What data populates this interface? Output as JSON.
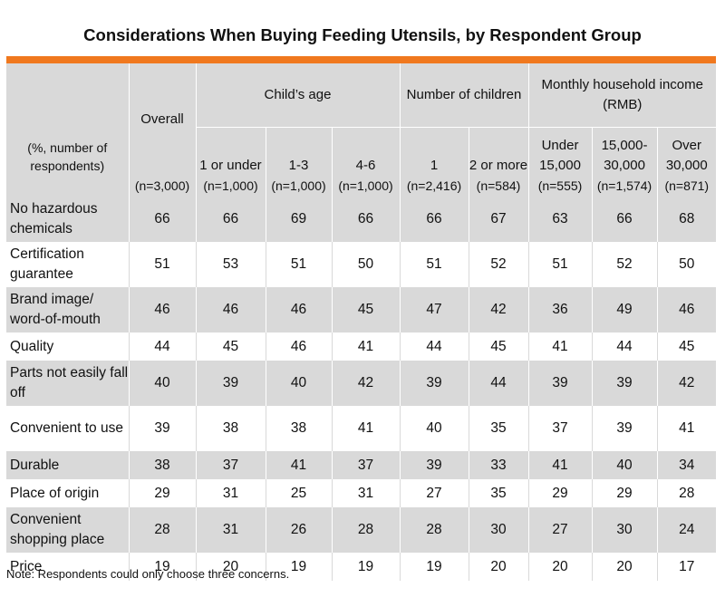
{
  "title": "Considerations When Buying Feeding Utensils, by Respondent Group",
  "note": "Note: Respondents could only choose three concerns.",
  "colors": {
    "accent_bar": "#f0781e",
    "shade": "#d9d9d9"
  },
  "header": {
    "row_label": "(%, number of respondents)",
    "overall": "Overall",
    "childs_age": "Child’s age",
    "num_children": "Number of children",
    "income": "Monthly household income (RMB)",
    "sub": [
      "1 or under",
      "1-3",
      "4-6",
      "1",
      "2 or more",
      "Under 15,000",
      "15,000-30,000",
      "Over 30,000"
    ],
    "n": [
      "(n=3,000)",
      "(n=1,000)",
      "(n=1,000)",
      "(n=1,000)",
      "(n=2,416)",
      "(n=584)",
      "(n=555)",
      "(n=1,574)",
      "(n=871)"
    ]
  },
  "chart_data": {
    "type": "table",
    "title": "Considerations When Buying Feeding Utensils, by Respondent Group",
    "columns": [
      "Overall",
      "1 or under",
      "1-3",
      "4-6",
      "1",
      "2 or more",
      "Under 15,000",
      "15,000-30,000",
      "Over 30,000"
    ],
    "rows": [
      {
        "label": "No hazardous chemicals",
        "values": [
          66,
          66,
          69,
          66,
          66,
          67,
          63,
          66,
          68
        ]
      },
      {
        "label": "Certification guarantee",
        "values": [
          51,
          53,
          51,
          50,
          51,
          52,
          51,
          52,
          50
        ]
      },
      {
        "label": "Brand image/ word-of-mouth",
        "values": [
          46,
          46,
          46,
          45,
          47,
          42,
          36,
          49,
          46
        ]
      },
      {
        "label": "Quality",
        "values": [
          44,
          45,
          46,
          41,
          44,
          45,
          41,
          44,
          45
        ]
      },
      {
        "label": "Parts not easily fall off",
        "values": [
          40,
          39,
          40,
          42,
          39,
          44,
          39,
          39,
          42
        ]
      },
      {
        "label": "Convenient to use",
        "values": [
          39,
          38,
          38,
          41,
          40,
          35,
          37,
          39,
          41
        ]
      },
      {
        "label": "Durable",
        "values": [
          38,
          37,
          41,
          37,
          39,
          33,
          41,
          40,
          34
        ]
      },
      {
        "label": "Place of origin",
        "values": [
          29,
          31,
          25,
          31,
          27,
          35,
          29,
          29,
          28
        ]
      },
      {
        "label": "Convenient shopping place",
        "values": [
          28,
          31,
          26,
          28,
          28,
          30,
          27,
          30,
          24
        ]
      },
      {
        "label": "Price",
        "values": [
          19,
          20,
          19,
          19,
          19,
          20,
          20,
          20,
          17
        ]
      }
    ]
  }
}
